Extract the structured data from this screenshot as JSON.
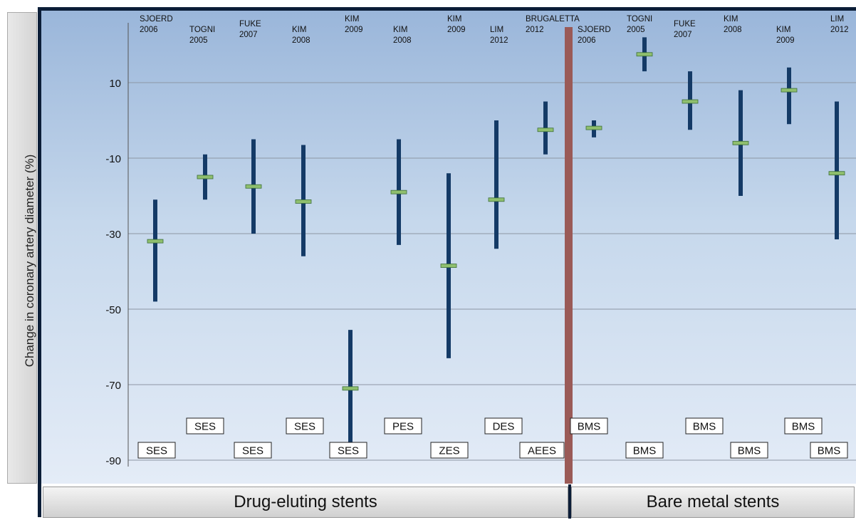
{
  "chart_data": {
    "type": "range",
    "ylabel": "Change in coronary artery diameter (%)",
    "yticks": [
      10,
      -10,
      -30,
      -50,
      -70,
      -90
    ],
    "ylim": [
      -92,
      28
    ],
    "grid": true,
    "groups": [
      {
        "name": "Drug-eluting stents",
        "studies": [
          0,
          1,
          2,
          3,
          4,
          5,
          6,
          7,
          8
        ]
      },
      {
        "name": "Bare metal stents",
        "studies": [
          9,
          10,
          11,
          12,
          13,
          14
        ]
      }
    ],
    "studies": [
      {
        "author": "SJOERD",
        "year": "2006",
        "stent": "SES",
        "low": -48,
        "high": -21,
        "mean": -32
      },
      {
        "author": "TOGNI",
        "year": "2005",
        "stent": "SES",
        "low": -21,
        "high": -9,
        "mean": -15
      },
      {
        "author": "FUKE",
        "year": "2007",
        "stent": "SES",
        "low": -30,
        "high": -5,
        "mean": -17.5
      },
      {
        "author": "KIM",
        "year": "2008",
        "stent": "SES",
        "low": -36,
        "high": -6.5,
        "mean": -21.5
      },
      {
        "author": "KIM",
        "year": "2009",
        "stent": "SES",
        "low": -86,
        "high": -55.5,
        "mean": -71
      },
      {
        "author": "KIM",
        "year": "2008",
        "stent": "PES",
        "low": -33,
        "high": -5,
        "mean": -19
      },
      {
        "author": "KIM",
        "year": "2009",
        "stent": "ZES",
        "low": -63,
        "high": -14,
        "mean": -38.5
      },
      {
        "author": "LIM",
        "year": "2012",
        "stent": "DES",
        "low": -34,
        "high": 0,
        "mean": -21
      },
      {
        "author": "BRUGALETTA",
        "year": "2012",
        "stent": "AEES",
        "low": -9,
        "high": 5,
        "mean": -2.5
      },
      {
        "author": "SJOERD",
        "year": "2006",
        "stent": "BMS",
        "low": -4.5,
        "high": 0,
        "mean": -2
      },
      {
        "author": "TOGNI",
        "year": "2005",
        "stent": "BMS",
        "low": 13,
        "high": 22,
        "mean": 17.5
      },
      {
        "author": "FUKE",
        "year": "2007",
        "stent": "BMS",
        "low": -2.5,
        "high": 13,
        "mean": 5
      },
      {
        "author": "KIM",
        "year": "2008",
        "stent": "BMS",
        "low": -20,
        "high": 8,
        "mean": -6
      },
      {
        "author": "KIM",
        "year": "2009",
        "stent": "BMS",
        "low": -1,
        "high": 14,
        "mean": 8
      },
      {
        "author": "LIM",
        "year": "2012",
        "stent": "BMS",
        "low": -31.5,
        "high": 5,
        "mean": -14
      }
    ]
  }
}
